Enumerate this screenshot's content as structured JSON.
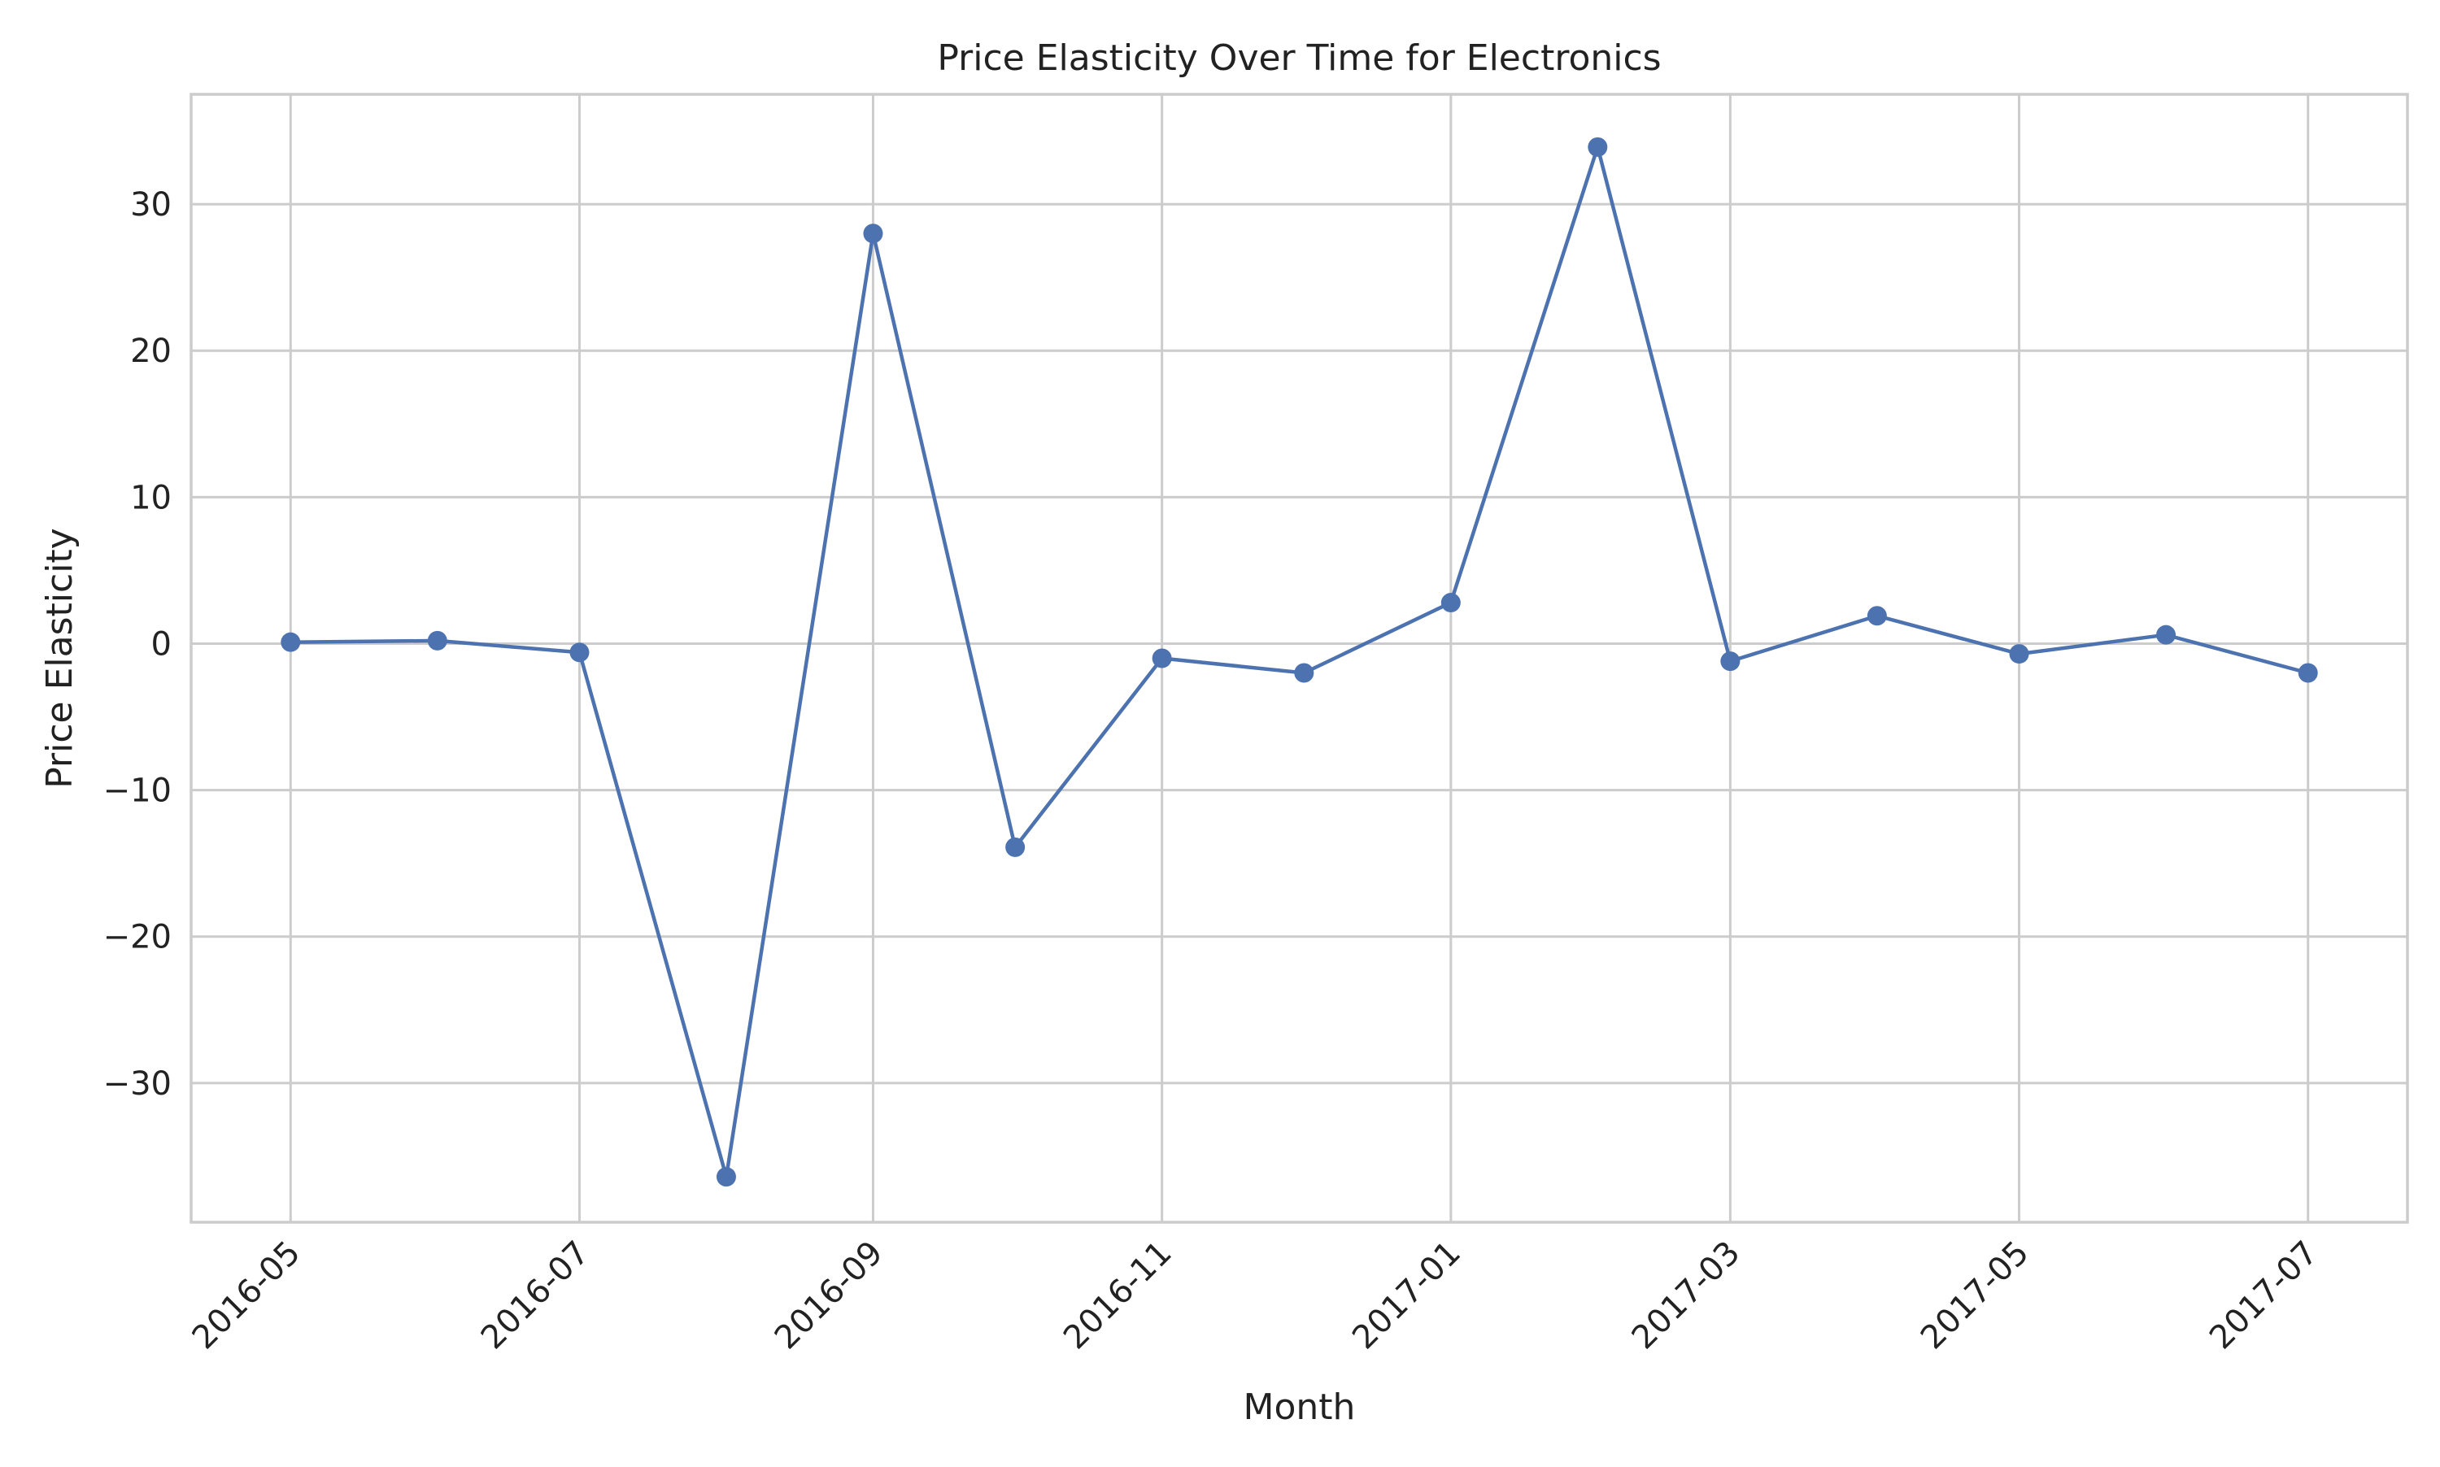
{
  "chart_data": {
    "type": "line",
    "title": "Price Elasticity Over Time for Electronics",
    "xlabel": "Month",
    "ylabel": "Price Elasticity",
    "x_tick_labels": [
      "2016-05",
      "2016-07",
      "2016-09",
      "2016-11",
      "2017-01",
      "2017-03",
      "2017-05",
      "2017-07"
    ],
    "x_tick_values": [
      "2016-05-01",
      "2016-07-01",
      "2016-09-01",
      "2016-11-01",
      "2017-01-01",
      "2017-03-01",
      "2017-05-01",
      "2017-07-01"
    ],
    "y_ticks": [
      -30,
      -20,
      -10,
      0,
      10,
      20,
      30
    ],
    "y_tick_labels": [
      "−30",
      "−20",
      "−10",
      "0",
      "10",
      "20",
      "30"
    ],
    "xlim": [
      "2016-04-10",
      "2017-07-22"
    ],
    "ylim": [
      -39.5,
      37.5
    ],
    "grid": true,
    "series": [
      {
        "color": "#4c72b0",
        "marker": "circle",
        "x": [
          "2016-05-01",
          "2016-06-01",
          "2016-07-01",
          "2016-08-01",
          "2016-09-01",
          "2016-10-01",
          "2016-11-01",
          "2016-12-01",
          "2017-01-01",
          "2017-02-01",
          "2017-03-01",
          "2017-04-01",
          "2017-05-01",
          "2017-06-01",
          "2017-07-01"
        ],
        "y": [
          0.1,
          0.2,
          -0.6,
          -36.4,
          28.0,
          -13.9,
          -1.0,
          -2.0,
          2.8,
          33.9,
          -1.2,
          1.9,
          -0.7,
          0.6,
          -2.0
        ]
      }
    ]
  }
}
